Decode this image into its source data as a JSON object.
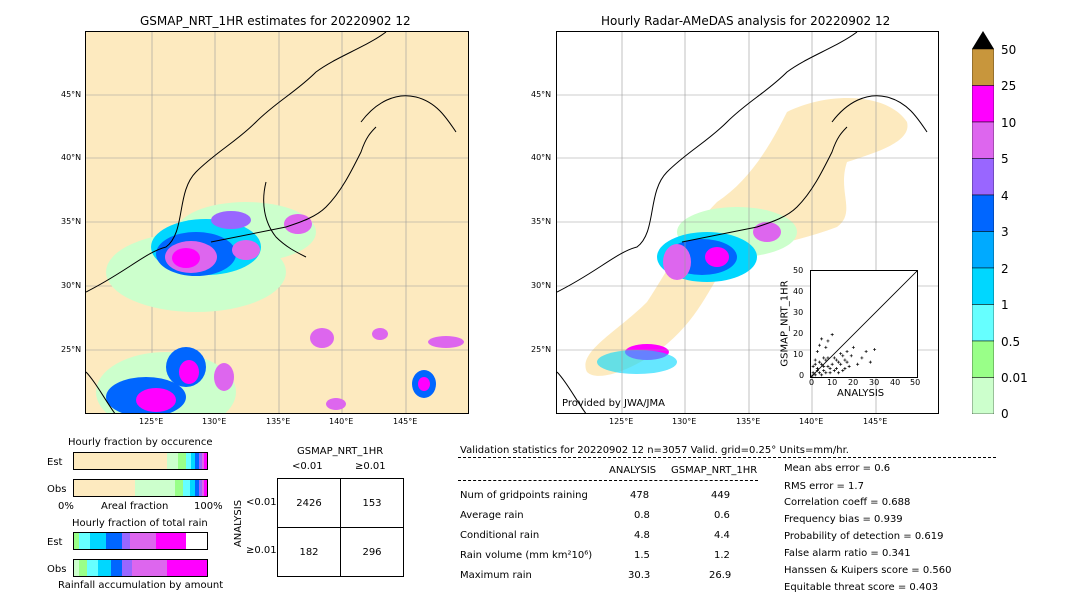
{
  "left_map": {
    "title": "GSMAP_NRT_1HR estimates for 20220902 12",
    "lat_labels": [
      "45°N",
      "40°N",
      "35°N",
      "30°N",
      "25°N"
    ],
    "lon_labels": [
      "125°E",
      "130°E",
      "135°E",
      "140°E",
      "145°E"
    ]
  },
  "right_map": {
    "title": "Hourly Radar-AMeDAS analysis for 20220902 12",
    "lat_labels": [
      "45°N",
      "40°N",
      "35°N",
      "30°N",
      "25°N"
    ],
    "lon_labels": [
      "125°E",
      "130°E",
      "135°E",
      "140°E",
      "145°E"
    ],
    "credit": "Provided by JWA/JMA"
  },
  "colorbar": {
    "labels": [
      "50",
      "25",
      "10",
      "5",
      "4",
      "3",
      "2",
      "1",
      "0.5",
      "0.01",
      "0"
    ],
    "colors": [
      "#c8963c",
      "#ff00ff",
      "#dd66ee",
      "#9966ff",
      "#0066ff",
      "#00aaff",
      "#00d7ff",
      "#66ffff",
      "#99ff88",
      "#ccffcc",
      "#ffe6bb"
    ]
  },
  "scatter": {
    "ylabel": "GSMAP_NRT_1HR",
    "xlabel": "ANALYSIS",
    "ticks": [
      "0",
      "10",
      "20",
      "30",
      "40",
      "50"
    ]
  },
  "occurrence": {
    "title": "Hourly fraction by occurence",
    "rows": [
      "Est",
      "Obs"
    ],
    "axis_left": "0%",
    "axis_mid": "Areal fraction",
    "axis_right": "100%"
  },
  "total_rain": {
    "title": "Hourly fraction of total rain",
    "rows": [
      "Est",
      "Obs"
    ],
    "footer": "Rainfall accumulation by amount"
  },
  "contingency": {
    "title": "GSMAP_NRT_1HR",
    "col_lt": "<0.01",
    "col_ge": "≥0.01",
    "row_axis": "ANALYSIS",
    "row_lt": "<0.01",
    "row_ge": "≥0.01",
    "cells": [
      [
        "2426",
        "153"
      ],
      [
        "182",
        "296"
      ]
    ]
  },
  "validation": {
    "header": "Validation statistics for 20220902 12  n=3057 Valid. grid=0.25° Units=mm/hr.",
    "col_analysis": "ANALYSIS",
    "col_gsmap": "GSMAP_NRT_1HR",
    "rows": [
      {
        "label": "Num of gridpoints raining",
        "analysis": "478",
        "gsmap": "449"
      },
      {
        "label": "Average rain",
        "analysis": "0.8",
        "gsmap": "0.6"
      },
      {
        "label": "Conditional rain",
        "analysis": "4.8",
        "gsmap": "4.4"
      },
      {
        "label": "Rain volume (mm km²10⁶)",
        "analysis": "1.5",
        "gsmap": "1.2"
      },
      {
        "label": "Maximum rain",
        "analysis": "30.3",
        "gsmap": "26.9"
      }
    ],
    "scores": [
      "Mean abs error =    0.6",
      "RMS error =    1.7",
      "Correlation coeff =  0.688",
      "Frequency bias =  0.939",
      "Probability of detection =  0.619",
      "False alarm ratio =  0.341",
      "Hanssen & Kuipers score =  0.560",
      "Equitable threat score =  0.403"
    ]
  },
  "chart_data": [
    {
      "type": "table",
      "title": "GSMAP_NRT_1HR",
      "columns": [
        "<0.01",
        "≥0.01"
      ],
      "rows": [
        "<0.01",
        "≥0.01"
      ],
      "values": [
        [
          2426,
          153
        ],
        [
          182,
          296
        ]
      ]
    },
    {
      "type": "scatter",
      "xlabel": "ANALYSIS",
      "ylabel": "GSMAP_NRT_1HR",
      "xlim": [
        0,
        50
      ],
      "ylim": [
        0,
        50
      ],
      "points": [
        [
          0.5,
          0.5
        ],
        [
          1,
          2
        ],
        [
          2,
          1
        ],
        [
          3,
          4
        ],
        [
          4,
          2
        ],
        [
          5,
          6
        ],
        [
          6,
          3
        ],
        [
          7,
          8
        ],
        [
          8,
          5
        ],
        [
          9,
          2
        ],
        [
          10,
          6
        ],
        [
          11,
          9
        ],
        [
          12,
          4
        ],
        [
          13,
          7
        ],
        [
          14,
          11
        ],
        [
          15,
          3
        ],
        [
          16,
          8
        ],
        [
          17,
          12
        ],
        [
          18,
          5
        ],
        [
          19,
          10
        ],
        [
          20,
          14
        ],
        [
          22,
          6
        ],
        [
          24,
          9
        ],
        [
          26,
          12
        ],
        [
          28,
          7
        ],
        [
          30,
          13
        ],
        [
          2,
          8
        ],
        [
          3,
          12
        ],
        [
          4,
          15
        ],
        [
          5,
          18
        ],
        [
          6,
          9
        ],
        [
          7,
          14
        ],
        [
          8,
          17
        ],
        [
          10,
          20
        ],
        [
          1,
          5
        ],
        [
          2,
          6
        ],
        [
          3,
          3
        ],
        [
          4,
          7
        ],
        [
          5,
          1
        ],
        [
          6,
          5
        ],
        [
          7,
          2
        ],
        [
          8,
          9
        ],
        [
          9,
          4
        ],
        [
          11,
          3
        ],
        [
          12,
          8
        ],
        [
          13,
          2
        ],
        [
          14,
          6
        ],
        [
          15,
          10
        ],
        [
          16,
          4
        ],
        [
          17,
          7
        ]
      ]
    },
    {
      "type": "bar",
      "title": "Hourly fraction by occurence",
      "categories": [
        "Est",
        "Obs"
      ]
    },
    {
      "type": "bar",
      "title": "Hourly fraction of total rain",
      "categories": [
        "Est",
        "Obs"
      ]
    }
  ]
}
